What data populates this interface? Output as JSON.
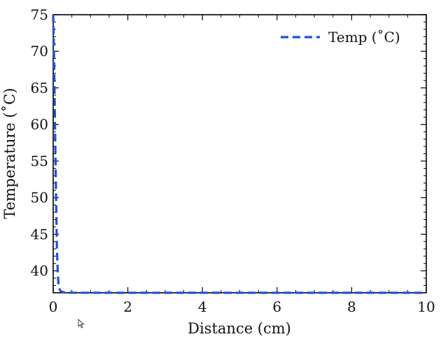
{
  "chart_data": {
    "type": "line",
    "title": "",
    "xlabel": "Distance (cm)",
    "ylabel": "Temperature (˚C)",
    "xlim": [
      0,
      10
    ],
    "ylim": [
      37,
      75
    ],
    "x_ticks": [
      0,
      2,
      4,
      6,
      8,
      10
    ],
    "y_ticks": [
      40,
      45,
      50,
      55,
      60,
      65,
      70,
      75
    ],
    "grid": false,
    "legend": {
      "placement": "top-right"
    },
    "series": [
      {
        "name": "Temp (˚C)",
        "color": "#1f4fe0",
        "line_style": "dashed",
        "x": [
          0,
          0.02,
          0.04,
          0.06,
          0.08,
          0.1,
          0.12,
          0.14,
          0.16,
          0.2,
          0.3,
          0.5,
          1,
          2,
          3,
          4,
          5,
          6,
          7,
          8,
          9,
          10
        ],
        "y": [
          75,
          70,
          63,
          56,
          49,
          43,
          40,
          38.3,
          37.6,
          37.2,
          37.05,
          37.01,
          37,
          37,
          37,
          37,
          37,
          37,
          37,
          37,
          37,
          37
        ]
      }
    ]
  }
}
